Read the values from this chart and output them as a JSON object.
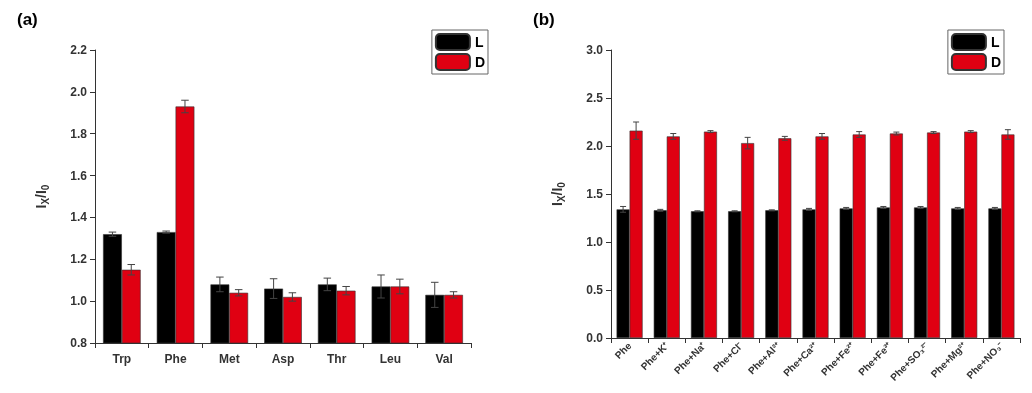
{
  "chart_data": [
    {
      "type": "bar",
      "title": "(a)",
      "ylabel": "I$_{X}$/I$_{0}$",
      "categories": [
        "Trp",
        "Phe",
        "Met",
        "Asp",
        "Thr",
        "Leu",
        "Val"
      ],
      "series": [
        {
          "name": "L",
          "color": "#000000",
          "values": [
            1.32,
            1.33,
            1.08,
            1.06,
            1.08,
            1.07,
            1.03
          ],
          "errors": [
            0.01,
            0.005,
            0.035,
            0.047,
            0.03,
            0.055,
            0.06
          ]
        },
        {
          "name": "D",
          "color": "#e00012",
          "values": [
            1.15,
            1.93,
            1.04,
            1.02,
            1.05,
            1.07,
            1.03
          ],
          "errors": [
            0.025,
            0.03,
            0.015,
            0.02,
            0.02,
            0.035,
            0.015
          ]
        }
      ],
      "ylim": [
        0.8,
        2.2
      ],
      "yticks": [
        0.8,
        {
          "value": 1,
          "label": "1.0"
        },
        1.2,
        1.4,
        1.6,
        1.8,
        {
          "value": 2,
          "label": "2.0"
        },
        2.2
      ],
      "grid": false,
      "legend": "top right"
    },
    {
      "type": "bar",
      "title": "(b)",
      "ylabel": "I$_{X}$/I$_{0}$",
      "categories": [
        "Phe",
        "Phe+K⁺",
        "Phe+Na⁺",
        "Phe+Cl⁻",
        "Phe+Al³⁺",
        "Phe+Ca²⁺",
        "Phe+Fe²⁺",
        "Phe+Fe³⁺",
        "Phe+SO₃²⁻",
        "Phe+Mg²⁺",
        "Phe+NO₃⁻"
      ],
      "series": [
        {
          "name": "L",
          "color": "#000000",
          "values": [
            1.34,
            1.33,
            1.32,
            1.32,
            1.33,
            1.34,
            1.35,
            1.36,
            1.36,
            1.35,
            1.35
          ],
          "errors": [
            0.03,
            0.01,
            0.005,
            0.005,
            0.005,
            0.01,
            0.01,
            0.01,
            0.01,
            0.01,
            0.01
          ]
        },
        {
          "name": "D",
          "color": "#e00012",
          "values": [
            2.16,
            2.1,
            2.15,
            2.03,
            2.08,
            2.1,
            2.12,
            2.13,
            2.14,
            2.15,
            2.12
          ],
          "errors": [
            0.09,
            0.03,
            0.01,
            0.06,
            0.02,
            0.03,
            0.03,
            0.015,
            0.01,
            0.01,
            0.05
          ]
        }
      ],
      "ylim": [
        0,
        3.0
      ],
      "yticks": [
        {
          "value": 0,
          "label": "0.0"
        },
        0.5,
        {
          "value": 1,
          "label": "1.0"
        },
        1.5,
        {
          "value": 2,
          "label": "2.0"
        },
        2.5,
        {
          "value": 3,
          "label": "3.0"
        }
      ],
      "grid": false,
      "legend": "top right"
    }
  ]
}
